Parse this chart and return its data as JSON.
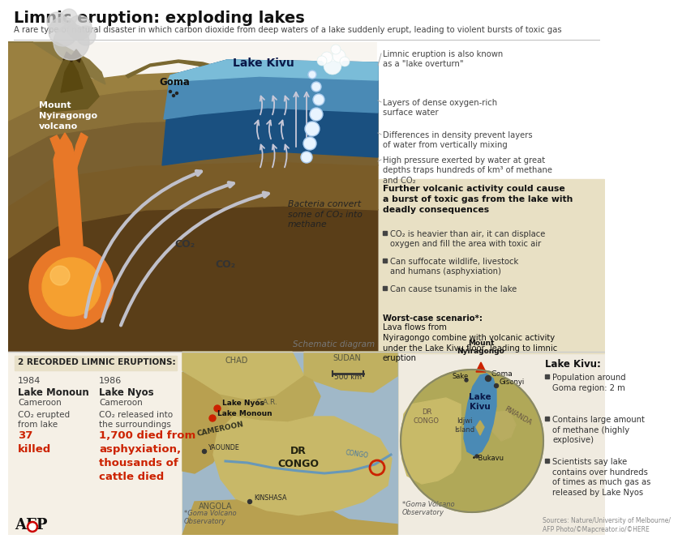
{
  "title": "Limnic eruption: exploding lakes",
  "subtitle": "A rare type of natural disaster in which carbon dioxide from deep waters of a lake suddenly erupt, leading to violent bursts of toxic gas",
  "white": "#ffffff",
  "black": "#111111",
  "red": "#cc2200",
  "dark_gray": "#333333",
  "mid_gray": "#666666",
  "light_gray": "#999999",
  "tan_bg": "#f0ebe0",
  "panel_yellow": "#e8e0c4",
  "earth_dark": "#5a3e18",
  "earth_mid": "#7a5c28",
  "earth_light": "#8a7038",
  "earth_top": "#9a8040",
  "lake_surface": "#7abcd8",
  "lake_mid": "#4a8ab5",
  "lake_deep": "#1a5080",
  "magma_orange": "#e87828",
  "magma_bright": "#f5a030",
  "smoke": "#c8c8c8",
  "arrow_col": "#c0c0ca",
  "map_base": "#c8b870",
  "map_dark": "#a89850",
  "water_river": "#88b0cc",
  "inset_land": "#c8ba68",
  "right_notes": [
    "Limnic eruption is also known\nas a \"lake overturn\"",
    "Layers of dense oxygen-rich\nsurface water",
    "Differences in density prevent layers\nof water from vertically mixing",
    "High pressure exerted by water at great\ndepths traps hundreds of km³ of methane\nand CO₂"
  ],
  "further_title": "Further volcanic activity could cause\na burst of toxic gas from the lake with\ndeadly consequences",
  "bullets": [
    "CO₂ is heavier than air, it can displace\noxygen and fill the area with toxic air",
    "Can suffocate wildlife, livestock\nand humans (asphyxiation)",
    "Can cause tsunamis in the lake"
  ],
  "worst_case_label": "Worst-case scenario*:",
  "worst_case_text": " Lava flows from\nNyiragongo combine with volcanic activity\nunder the Lake Kivu floor, leading to limnic\neruption",
  "recorded_title": "2 RECORDED LIMNIC ERUPTIONS:",
  "e1_year": "1984",
  "e1_lake": "Lake Monoun",
  "e1_country": "Cameroon",
  "e1_effect": "CO₂ erupted\nfrom lake",
  "e1_death": "37\nkilled",
  "e2_year": "1986",
  "e2_lake": "Lake Nyos",
  "e2_country": "Cameroon",
  "e2_effect": "CO₂ released into\nthe surroundings",
  "e2_death": "1,700 died from\nasphyxiation,\nthousands of\ncattle died",
  "lk_title": "Lake Kivu:",
  "lk_bullets": [
    "Population around\nGoma region: 2 m",
    "Contains large amount\nof methane (highly\nexplosive)",
    "Scientists say lake\ncontains over hundreds\nof times as much gas as\nreleased by Lake Nyos"
  ],
  "source_txt": "Sources: Nature/University of Melbourne/\nAFP Photo/©Mapcreator.io/©HERE",
  "schematic_label": "Schematic diagram",
  "goma_obs": "*Goma Volcano\nObservatory"
}
